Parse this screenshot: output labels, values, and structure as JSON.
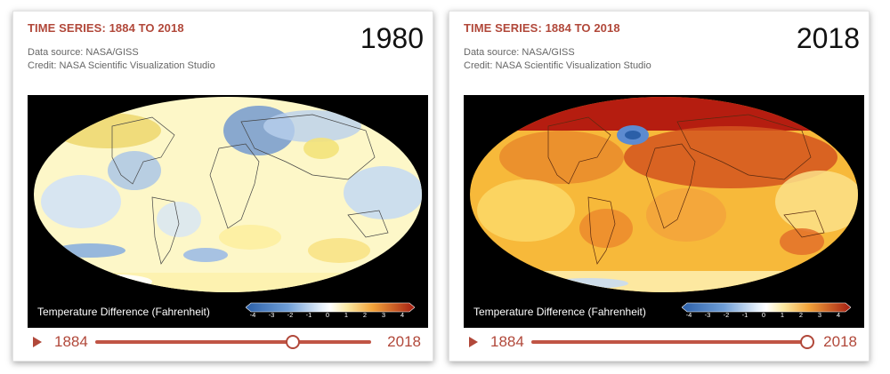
{
  "panels": [
    {
      "series_title": "TIME SERIES: 1884 TO 2018",
      "source_line": "Data source: NASA/GISS",
      "credit_line": "Credit: NASA Scientific Visualization Studio",
      "year": "1980",
      "legend_label": "Temperature Difference (Fahrenheit)",
      "legend_ticks": [
        "-4",
        "-3",
        "-2",
        "-1",
        "0",
        "1",
        "2",
        "3",
        "4"
      ],
      "slider": {
        "start_label": "1884",
        "end_label": "2018",
        "min": 1884,
        "max": 2018,
        "value": 1980
      },
      "map_palette": "cool"
    },
    {
      "series_title": "TIME SERIES: 1884 TO 2018",
      "source_line": "Data source: NASA/GISS",
      "credit_line": "Credit: NASA Scientific Visualization Studio",
      "year": "2018",
      "legend_label": "Temperature Difference (Fahrenheit)",
      "legend_ticks": [
        "-4",
        "-3",
        "-2",
        "-1",
        "0",
        "1",
        "2",
        "3",
        "4"
      ],
      "slider": {
        "start_label": "1884",
        "end_label": "2018",
        "min": 1884,
        "max": 2018,
        "value": 2018
      },
      "map_palette": "warm"
    }
  ],
  "colors": {
    "accent": "#b1483a",
    "legend_gradient": [
      "#2b5fa8",
      "#6f9ed6",
      "#c7ddf2",
      "#ffffff",
      "#fbe9a3",
      "#f7c14d",
      "#ef8a2c",
      "#d0441f",
      "#a51d12"
    ]
  },
  "icons": {
    "play": "play-icon"
  }
}
